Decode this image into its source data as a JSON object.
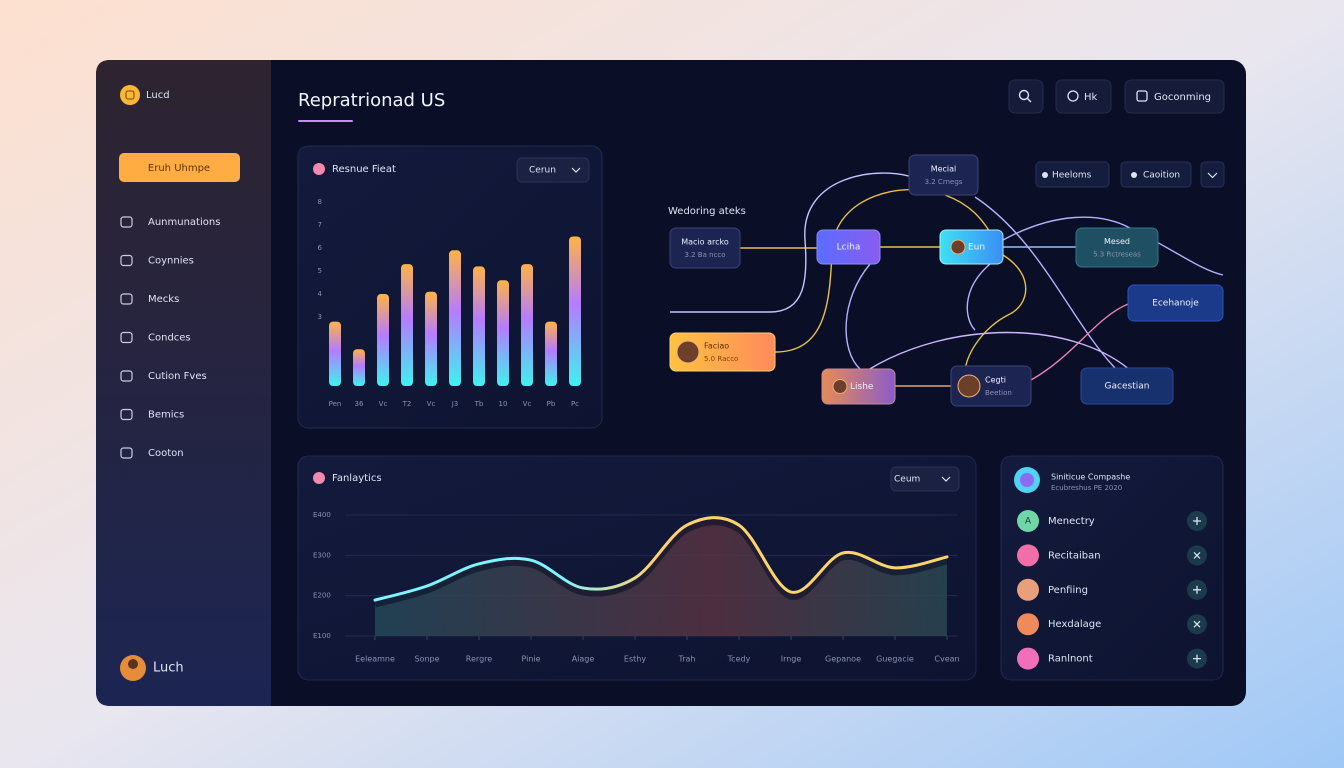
{
  "sidebar": {
    "brand": "Lucd",
    "button": "Eruh Uhmpe",
    "menu": [
      "Aunmunations",
      "Coynnies",
      "Mecks",
      "Condces",
      "Cution Fves",
      "Bemics",
      "Cooton"
    ],
    "user": "Luch"
  },
  "header": {
    "title": "Repratrionad US",
    "buttons": [
      "Hk",
      "Goconming"
    ]
  },
  "chart_data": [
    {
      "type": "bar",
      "title": "Resnue Fieat",
      "dropdown": "Cerun",
      "categories": [
        "Pen",
        "36",
        "Vc",
        "T2",
        "Vc",
        "J3",
        "Tb",
        "10",
        "Vc",
        "Pb",
        "Pc"
      ],
      "values": [
        2.8,
        1.6,
        4.0,
        5.3,
        4.1,
        5.9,
        5.2,
        4.6,
        5.3,
        2.8,
        6.5
      ],
      "ylim": [
        0,
        8
      ],
      "yticks": [
        3,
        4,
        5,
        6,
        7,
        8
      ],
      "colors": [
        "#ffb347",
        "#b57bff",
        "#3ef2f0"
      ]
    },
    {
      "type": "line",
      "title": "Fanlaytics",
      "dropdown": "Ceum",
      "categories": [
        "Eeleamne",
        "Sonpe",
        "Rergre",
        "Pinie",
        "Aiage",
        "Esthy",
        "Trah",
        "Tcedy",
        "Irnge",
        "Gepanoe",
        "Guegacie",
        "Cvean"
      ],
      "values": [
        189,
        224,
        279,
        288,
        219,
        244,
        375,
        375,
        209,
        306,
        269,
        296
      ],
      "ylim": [
        100,
        400
      ],
      "yticks": [
        {
          "value": 100,
          "label": "E100"
        },
        {
          "value": 200,
          "label": "E200"
        },
        {
          "value": 300,
          "label": "E300"
        },
        {
          "value": 400,
          "label": "E400"
        }
      ],
      "grid": true,
      "colors": [
        "#7ff3ff",
        "#ffd36b"
      ]
    }
  ],
  "workflow": {
    "title": "Wedoring ateks",
    "legend": [
      "Heeloms",
      "Caoition"
    ],
    "nodes": [
      {
        "label": "Macio arcko",
        "sub": "3.2 Ba ncco"
      },
      {
        "label": "Lciha"
      },
      {
        "label": "Eun"
      },
      {
        "label": "Mecial",
        "sub": "3.2 Crnegs"
      },
      {
        "label": "Mesed",
        "sub": "5.3 Rctreseas"
      },
      {
        "label": "Ecehanoje"
      },
      {
        "label": "Faciao",
        "sub": "5.0 Racco"
      },
      {
        "label": "Lishe"
      },
      {
        "label": "Cegti",
        "sub": "Beetion"
      },
      {
        "label": "Gacestian"
      }
    ]
  },
  "team": {
    "title": "Siniticue Compashe",
    "subtitle": "Ecubreshus PE 2020",
    "members": [
      {
        "initial": "A",
        "name": "Menectry"
      },
      {
        "name": "Recitaiban"
      },
      {
        "name": "Penfiing"
      },
      {
        "name": "Hexdalage"
      },
      {
        "name": "Ranlnont"
      }
    ]
  }
}
